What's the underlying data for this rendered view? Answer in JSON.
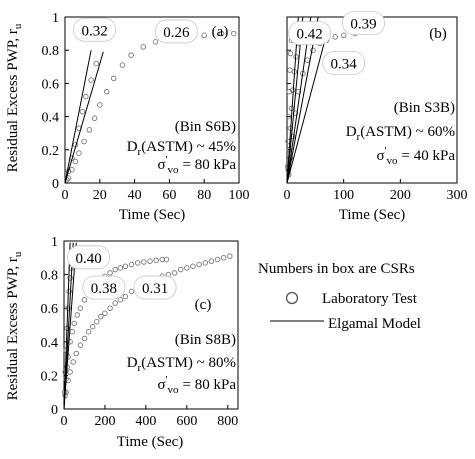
{
  "y_axis_title": "Residual Excess PWP, r",
  "y_axis_title_sub": "u",
  "note": "Numbers in box are CSRs",
  "legend": [
    {
      "label": "Laboratory Test",
      "symbol": "open-circle"
    },
    {
      "label": "Elgamal Model",
      "symbol": "line"
    }
  ],
  "chart_data": [
    {
      "type": "scatter",
      "panel": "(a)",
      "xlabel": "Time (Sec)",
      "xlim": [
        0,
        100
      ],
      "xticks": [
        0,
        20,
        40,
        60,
        80,
        100
      ],
      "ylim": [
        0,
        1
      ],
      "yticks": [
        "0",
        "0.2",
        "0.4",
        "0.6",
        "0.8",
        "1"
      ],
      "specimen": "(Bin S6B)",
      "dr_prefix": "D",
      "dr_sub": "r",
      "dr_rest": "(ASTM) ~ 45%",
      "sigma_sym": "σ",
      "sigma_sup": "'",
      "sigma_sub": "vo",
      "sigma_rest": "= 80 kPa",
      "csr_boxes": [
        {
          "label": "0.32",
          "cx": 17,
          "cy": 0.92
        },
        {
          "label": "0.26",
          "cx": 64,
          "cy": 0.91
        }
      ],
      "series": [
        {
          "csr": "0.32",
          "x": [
            1,
            2,
            4,
            6,
            8,
            10,
            12,
            15,
            18
          ],
          "y": [
            0.02,
            0.07,
            0.15,
            0.23,
            0.33,
            0.43,
            0.52,
            0.62,
            0.72
          ]
        },
        {
          "csr": "0.26",
          "x": [
            2,
            4,
            6,
            8,
            11,
            14,
            17,
            20,
            24,
            28,
            33,
            38,
            45,
            52,
            60,
            70,
            80,
            90,
            97
          ],
          "y": [
            0.03,
            0.08,
            0.13,
            0.18,
            0.25,
            0.32,
            0.39,
            0.47,
            0.55,
            0.63,
            0.71,
            0.77,
            0.82,
            0.85,
            0.87,
            0.88,
            0.89,
            0.9,
            0.9
          ]
        }
      ],
      "model_lines": [
        {
          "x": [
            0,
            15
          ],
          "y": [
            0,
            0.8
          ]
        },
        {
          "x": [
            0,
            22
          ],
          "y": [
            0,
            0.79
          ]
        }
      ]
    },
    {
      "type": "scatter",
      "panel": "(b)",
      "xlabel": "Time (Sec)",
      "xlim": [
        0,
        300
      ],
      "xticks": [
        0,
        100,
        200,
        300
      ],
      "ylim": [
        0,
        1
      ],
      "yticks": [],
      "specimen": "(Bin S3B)",
      "dr_prefix": "D",
      "dr_sub": "r",
      "dr_rest": "(ASTM) ~ 60%",
      "sigma_sym": "σ",
      "sigma_sup": "'",
      "sigma_sub": "vo",
      "sigma_rest": "= 40 kPa",
      "csr_boxes": [
        {
          "label": "0.42",
          "cx": 40,
          "cy": 0.9
        },
        {
          "label": "0.39",
          "cx": 135,
          "cy": 0.96
        },
        {
          "label": "0.34",
          "cx": 100,
          "cy": 0.72
        }
      ],
      "series": [
        {
          "csr": "0.42",
          "x": [
            1,
            2,
            3,
            4,
            5,
            6,
            8
          ],
          "y": [
            0.1,
            0.25,
            0.4,
            0.55,
            0.68,
            0.78,
            0.86
          ]
        },
        {
          "csr": "0.39",
          "x": [
            2,
            4,
            6,
            8,
            10,
            13,
            16,
            20
          ],
          "y": [
            0.08,
            0.2,
            0.33,
            0.45,
            0.56,
            0.67,
            0.76,
            0.84
          ]
        },
        {
          "csr": "0.34",
          "x": [
            3,
            6,
            10,
            15,
            20,
            28,
            36,
            46,
            58,
            70,
            85,
            100,
            120
          ],
          "y": [
            0.05,
            0.15,
            0.28,
            0.42,
            0.55,
            0.66,
            0.74,
            0.8,
            0.84,
            0.86,
            0.88,
            0.89,
            0.9
          ]
        }
      ],
      "model_lines": [
        {
          "x": [
            0,
            20
          ],
          "y": [
            0,
            1
          ]
        },
        {
          "x": [
            0,
            28
          ],
          "y": [
            0,
            1
          ]
        },
        {
          "x": [
            0,
            42
          ],
          "y": [
            0,
            1
          ]
        },
        {
          "x": [
            0,
            55
          ],
          "y": [
            0,
            1
          ]
        },
        {
          "x": [
            0,
            70
          ],
          "y": [
            0,
            0.9
          ]
        }
      ]
    },
    {
      "type": "scatter",
      "panel": "(c)",
      "xlabel": "Time (Sec)",
      "xlim": [
        0,
        850
      ],
      "xticks": [
        0,
        200,
        400,
        600,
        800
      ],
      "ylim": [
        0,
        1
      ],
      "yticks": [
        "0",
        "0.2",
        "0.4",
        "0.6",
        "0.8",
        "1"
      ],
      "specimen": "(Bin S8B)",
      "dr_prefix": "D",
      "dr_sub": "r",
      "dr_rest": "(ASTM) ~ 80%",
      "sigma_sym": "σ",
      "sigma_sup": "'",
      "sigma_sub": "vo",
      "sigma_rest": "= 80 kPa",
      "csr_boxes": [
        {
          "label": "0.40",
          "cx": 120,
          "cy": 0.9
        },
        {
          "label": "0.38",
          "cx": 195,
          "cy": 0.72
        },
        {
          "label": "0.31",
          "cx": 445,
          "cy": 0.72
        }
      ],
      "series": [
        {
          "csr": "0.40",
          "x": [
            3,
            6,
            10,
            15,
            20,
            25,
            30,
            35,
            40
          ],
          "y": [
            0.1,
            0.22,
            0.35,
            0.48,
            0.6,
            0.7,
            0.78,
            0.84,
            0.88
          ]
        },
        {
          "csr": "0.38",
          "x": [
            5,
            10,
            15,
            20,
            30,
            40,
            50,
            65,
            80,
            100,
            120,
            140,
            160,
            180,
            200,
            225,
            250,
            275,
            300,
            330,
            360,
            390,
            420,
            450,
            480,
            500
          ],
          "y": [
            0.08,
            0.18,
            0.25,
            0.31,
            0.4,
            0.46,
            0.51,
            0.56,
            0.6,
            0.65,
            0.69,
            0.72,
            0.75,
            0.77,
            0.79,
            0.81,
            0.83,
            0.84,
            0.85,
            0.86,
            0.87,
            0.875,
            0.88,
            0.885,
            0.89,
            0.89
          ]
        },
        {
          "csr": "0.31",
          "x": [
            10,
            20,
            30,
            45,
            60,
            80,
            100,
            120,
            140,
            160,
            180,
            200,
            225,
            250,
            275,
            300,
            330,
            360,
            390,
            420,
            450,
            480,
            510,
            540,
            570,
            600,
            630,
            660,
            690,
            720,
            750,
            780,
            810
          ],
          "y": [
            0.1,
            0.17,
            0.22,
            0.28,
            0.33,
            0.38,
            0.42,
            0.46,
            0.49,
            0.52,
            0.55,
            0.57,
            0.6,
            0.63,
            0.65,
            0.67,
            0.7,
            0.72,
            0.74,
            0.76,
            0.77,
            0.79,
            0.8,
            0.81,
            0.83,
            0.84,
            0.85,
            0.86,
            0.87,
            0.88,
            0.89,
            0.9,
            0.91
          ]
        }
      ],
      "model_lines": [
        {
          "x": [
            0,
            30
          ],
          "y": [
            0,
            0.99
          ]
        },
        {
          "x": [
            0,
            45
          ],
          "y": [
            0,
            0.99
          ]
        },
        {
          "x": [
            0,
            60
          ],
          "y": [
            0,
            0.99
          ]
        }
      ]
    }
  ]
}
